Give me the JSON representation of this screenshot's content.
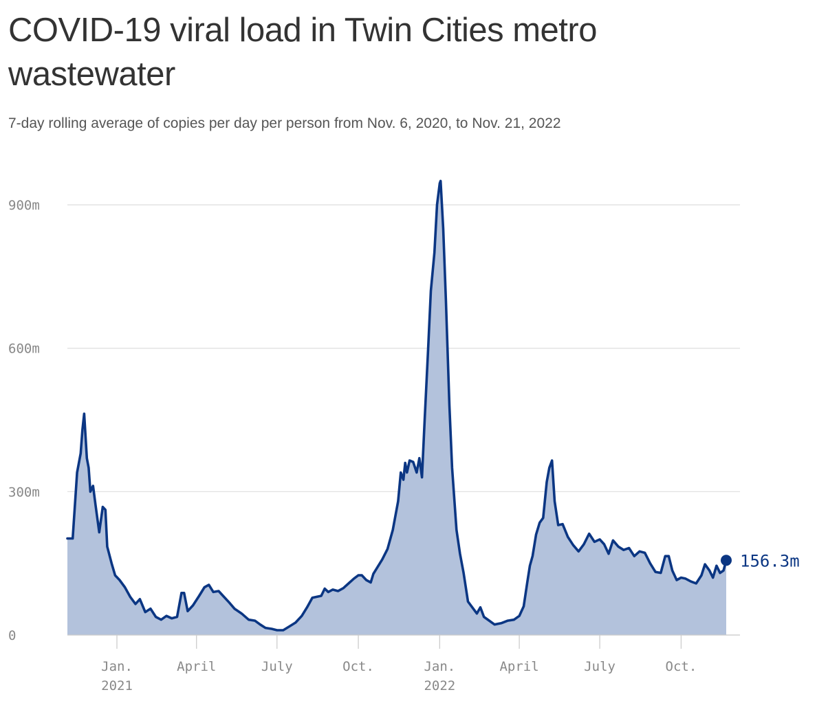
{
  "header": {
    "title": "COVID-19 viral load in Twin Cities metro wastewater",
    "subtitle": "7-day rolling average of copies per day per person from Nov. 6, 2020, to Nov. 21, 2022"
  },
  "colors": {
    "line": "#0b3683",
    "area": "#b3c2dc",
    "grid": "#e1e1e1",
    "tick_text": "#888888"
  },
  "chart_data": {
    "type": "area",
    "title": "COVID-19 viral load in Twin Cities metro wastewater",
    "subtitle": "7-day rolling average of copies per day per person from Nov. 6, 2020, to Nov. 21, 2022",
    "xlabel": "",
    "ylabel": "",
    "ylim": [
      0,
      960
    ],
    "y_ticks": [
      0,
      300,
      600,
      900
    ],
    "y_tick_labels": [
      "0",
      "300m",
      "600m",
      "900m"
    ],
    "x_ticks": [
      {
        "date": "2021-01-01",
        "label": [
          "Jan.",
          "2021"
        ]
      },
      {
        "date": "2021-04-01",
        "label": [
          "April"
        ]
      },
      {
        "date": "2021-07-01",
        "label": [
          "July"
        ]
      },
      {
        "date": "2021-10-01",
        "label": [
          "Oct."
        ]
      },
      {
        "date": "2022-01-01",
        "label": [
          "Jan.",
          "2022"
        ]
      },
      {
        "date": "2022-04-01",
        "label": [
          "April"
        ]
      },
      {
        "date": "2022-07-01",
        "label": [
          "July"
        ]
      },
      {
        "date": "2022-10-01",
        "label": [
          "Oct."
        ]
      }
    ],
    "grid": true,
    "end_label": "156.3m",
    "series": [
      {
        "unit": "million copies per day per person",
        "points": [
          [
            "2020-11-06",
            202
          ],
          [
            "2020-11-12",
            202
          ],
          [
            "2020-11-17",
            340
          ],
          [
            "2020-11-21",
            380
          ],
          [
            "2020-11-23",
            430
          ],
          [
            "2020-11-25",
            463
          ],
          [
            "2020-11-28",
            370
          ],
          [
            "2020-11-30",
            350
          ],
          [
            "2020-12-02",
            300
          ],
          [
            "2020-12-05",
            312
          ],
          [
            "2020-12-08",
            270
          ],
          [
            "2020-12-12",
            215
          ],
          [
            "2020-12-16",
            268
          ],
          [
            "2020-12-19",
            262
          ],
          [
            "2020-12-21",
            185
          ],
          [
            "2020-12-26",
            150
          ],
          [
            "2020-12-30",
            125
          ],
          [
            "2021-01-04",
            115
          ],
          [
            "2021-01-10",
            100
          ],
          [
            "2021-01-16",
            80
          ],
          [
            "2021-01-22",
            65
          ],
          [
            "2021-01-27",
            75
          ],
          [
            "2021-02-02",
            48
          ],
          [
            "2021-02-08",
            55
          ],
          [
            "2021-02-14",
            38
          ],
          [
            "2021-02-20",
            32
          ],
          [
            "2021-02-26",
            40
          ],
          [
            "2021-03-04",
            35
          ],
          [
            "2021-03-10",
            38
          ],
          [
            "2021-03-15",
            88
          ],
          [
            "2021-03-18",
            88
          ],
          [
            "2021-03-22",
            50
          ],
          [
            "2021-03-28",
            62
          ],
          [
            "2021-04-04",
            82
          ],
          [
            "2021-04-10",
            100
          ],
          [
            "2021-04-15",
            105
          ],
          [
            "2021-04-20",
            90
          ],
          [
            "2021-04-26",
            92
          ],
          [
            "2021-05-02",
            80
          ],
          [
            "2021-05-08",
            68
          ],
          [
            "2021-05-14",
            55
          ],
          [
            "2021-05-22",
            45
          ],
          [
            "2021-05-30",
            32
          ],
          [
            "2021-06-06",
            30
          ],
          [
            "2021-06-12",
            22
          ],
          [
            "2021-06-18",
            15
          ],
          [
            "2021-06-25",
            13
          ],
          [
            "2021-07-01",
            10
          ],
          [
            "2021-07-08",
            10
          ],
          [
            "2021-07-15",
            18
          ],
          [
            "2021-07-22",
            26
          ],
          [
            "2021-07-29",
            40
          ],
          [
            "2021-08-04",
            58
          ],
          [
            "2021-08-10",
            78
          ],
          [
            "2021-08-15",
            80
          ],
          [
            "2021-08-20",
            82
          ],
          [
            "2021-08-24",
            97
          ],
          [
            "2021-08-28",
            90
          ],
          [
            "2021-09-02",
            95
          ],
          [
            "2021-09-08",
            92
          ],
          [
            "2021-09-14",
            98
          ],
          [
            "2021-09-20",
            108
          ],
          [
            "2021-09-26",
            118
          ],
          [
            "2021-10-01",
            125
          ],
          [
            "2021-10-05",
            125
          ],
          [
            "2021-10-10",
            115
          ],
          [
            "2021-10-15",
            110
          ],
          [
            "2021-10-18",
            128
          ],
          [
            "2021-10-22",
            140
          ],
          [
            "2021-10-28",
            158
          ],
          [
            "2021-11-03",
            180
          ],
          [
            "2021-11-09",
            220
          ],
          [
            "2021-11-15",
            280
          ],
          [
            "2021-11-18",
            340
          ],
          [
            "2021-11-21",
            325
          ],
          [
            "2021-11-23",
            360
          ],
          [
            "2021-11-25",
            340
          ],
          [
            "2021-11-28",
            365
          ],
          [
            "2021-12-02",
            362
          ],
          [
            "2021-12-06",
            340
          ],
          [
            "2021-12-09",
            370
          ],
          [
            "2021-12-12",
            330
          ],
          [
            "2021-12-15",
            450
          ],
          [
            "2021-12-19",
            600
          ],
          [
            "2021-12-22",
            720
          ],
          [
            "2021-12-26",
            800
          ],
          [
            "2021-12-29",
            900
          ],
          [
            "2022-01-01",
            945
          ],
          [
            "2022-01-02",
            950
          ],
          [
            "2022-01-05",
            850
          ],
          [
            "2022-01-08",
            700
          ],
          [
            "2022-01-12",
            480
          ],
          [
            "2022-01-15",
            350
          ],
          [
            "2022-01-20",
            220
          ],
          [
            "2022-01-24",
            170
          ],
          [
            "2022-01-28",
            130
          ],
          [
            "2022-02-02",
            70
          ],
          [
            "2022-02-08",
            55
          ],
          [
            "2022-02-12",
            45
          ],
          [
            "2022-02-16",
            58
          ],
          [
            "2022-02-20",
            38
          ],
          [
            "2022-02-26",
            30
          ],
          [
            "2022-03-04",
            22
          ],
          [
            "2022-03-12",
            25
          ],
          [
            "2022-03-19",
            30
          ],
          [
            "2022-03-26",
            32
          ],
          [
            "2022-04-01",
            40
          ],
          [
            "2022-04-06",
            60
          ],
          [
            "2022-04-10",
            110
          ],
          [
            "2022-04-13",
            145
          ],
          [
            "2022-04-16",
            165
          ],
          [
            "2022-04-20",
            210
          ],
          [
            "2022-04-24",
            235
          ],
          [
            "2022-04-28",
            245
          ],
          [
            "2022-05-02",
            320
          ],
          [
            "2022-05-05",
            350
          ],
          [
            "2022-05-08",
            365
          ],
          [
            "2022-05-11",
            280
          ],
          [
            "2022-05-15",
            230
          ],
          [
            "2022-05-20",
            232
          ],
          [
            "2022-05-26",
            205
          ],
          [
            "2022-06-01",
            188
          ],
          [
            "2022-06-07",
            175
          ],
          [
            "2022-06-13",
            190
          ],
          [
            "2022-06-19",
            212
          ],
          [
            "2022-06-25",
            195
          ],
          [
            "2022-07-01",
            200
          ],
          [
            "2022-07-06",
            190
          ],
          [
            "2022-07-11",
            170
          ],
          [
            "2022-07-16",
            198
          ],
          [
            "2022-07-22",
            185
          ],
          [
            "2022-07-28",
            178
          ],
          [
            "2022-08-03",
            182
          ],
          [
            "2022-08-09",
            165
          ],
          [
            "2022-08-15",
            175
          ],
          [
            "2022-08-21",
            172
          ],
          [
            "2022-08-27",
            150
          ],
          [
            "2022-09-02",
            132
          ],
          [
            "2022-09-08",
            130
          ],
          [
            "2022-09-13",
            165
          ],
          [
            "2022-09-17",
            165
          ],
          [
            "2022-09-21",
            135
          ],
          [
            "2022-09-26",
            115
          ],
          [
            "2022-10-01",
            120
          ],
          [
            "2022-10-06",
            118
          ],
          [
            "2022-10-12",
            112
          ],
          [
            "2022-10-18",
            108
          ],
          [
            "2022-10-24",
            125
          ],
          [
            "2022-10-28",
            148
          ],
          [
            "2022-11-02",
            135
          ],
          [
            "2022-11-06",
            120
          ],
          [
            "2022-11-10",
            145
          ],
          [
            "2022-11-14",
            130
          ],
          [
            "2022-11-18",
            135
          ],
          [
            "2022-11-21",
            156.3
          ]
        ]
      }
    ]
  }
}
